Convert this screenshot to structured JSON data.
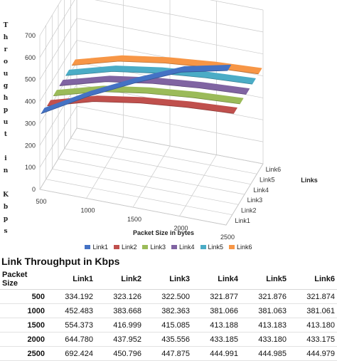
{
  "chart_data": {
    "type": "line",
    "subtype": "3d",
    "title": "",
    "xlabel": "Packet Size in bytes",
    "ylabel": "Throughput in Kbps",
    "zlabel": "Links",
    "x": [
      500,
      1000,
      1500,
      2000,
      2500
    ],
    "x_ticks": [
      "500",
      "1000",
      "1500",
      "2000",
      "2500"
    ],
    "y_ticks": [
      "0",
      "100",
      "200",
      "300",
      "400",
      "500",
      "600",
      "700"
    ],
    "ylim": [
      0,
      700
    ],
    "grid": true,
    "legend_position": "bottom",
    "series": [
      {
        "name": "Link1",
        "color": "#4472c4",
        "values": [
          334.192,
          452.483,
          554.373,
          644.78,
          692.424
        ]
      },
      {
        "name": "Link2",
        "color": "#c0504d",
        "values": [
          323.126,
          383.668,
          416.999,
          437.952,
          450.796
        ]
      },
      {
        "name": "Link3",
        "color": "#9bbb59",
        "values": [
          322.5,
          382.363,
          415.085,
          435.556,
          447.875
        ]
      },
      {
        "name": "Link4",
        "color": "#8064a2",
        "values": [
          321.877,
          381.066,
          413.188,
          433.185,
          444.991
        ]
      },
      {
        "name": "Link5",
        "color": "#4bacc6",
        "values": [
          321.876,
          381.063,
          413.183,
          433.18,
          444.985
        ]
      },
      {
        "name": "Link6",
        "color": "#f79646",
        "values": [
          321.874,
          381.061,
          413.18,
          433.175,
          444.979
        ]
      }
    ]
  },
  "table": {
    "title": "Link Throughput in Kbps",
    "header_first": "Packet Size",
    "columns": [
      "Link1",
      "Link2",
      "Link3",
      "Link4",
      "Link5",
      "Link6"
    ],
    "rows": [
      {
        "size": "500",
        "cells": [
          "334.192",
          "323.126",
          "322.500",
          "321.877",
          "321.876",
          "321.874"
        ]
      },
      {
        "size": "1000",
        "cells": [
          "452.483",
          "383.668",
          "382.363",
          "381.066",
          "381.063",
          "381.061"
        ]
      },
      {
        "size": "1500",
        "cells": [
          "554.373",
          "416.999",
          "415.085",
          "413.188",
          "413.183",
          "413.180"
        ]
      },
      {
        "size": "2000",
        "cells": [
          "644.780",
          "437.952",
          "435.556",
          "433.185",
          "433.180",
          "433.175"
        ]
      },
      {
        "size": "2500",
        "cells": [
          "692.424",
          "450.796",
          "447.875",
          "444.991",
          "444.985",
          "444.979"
        ]
      }
    ]
  }
}
